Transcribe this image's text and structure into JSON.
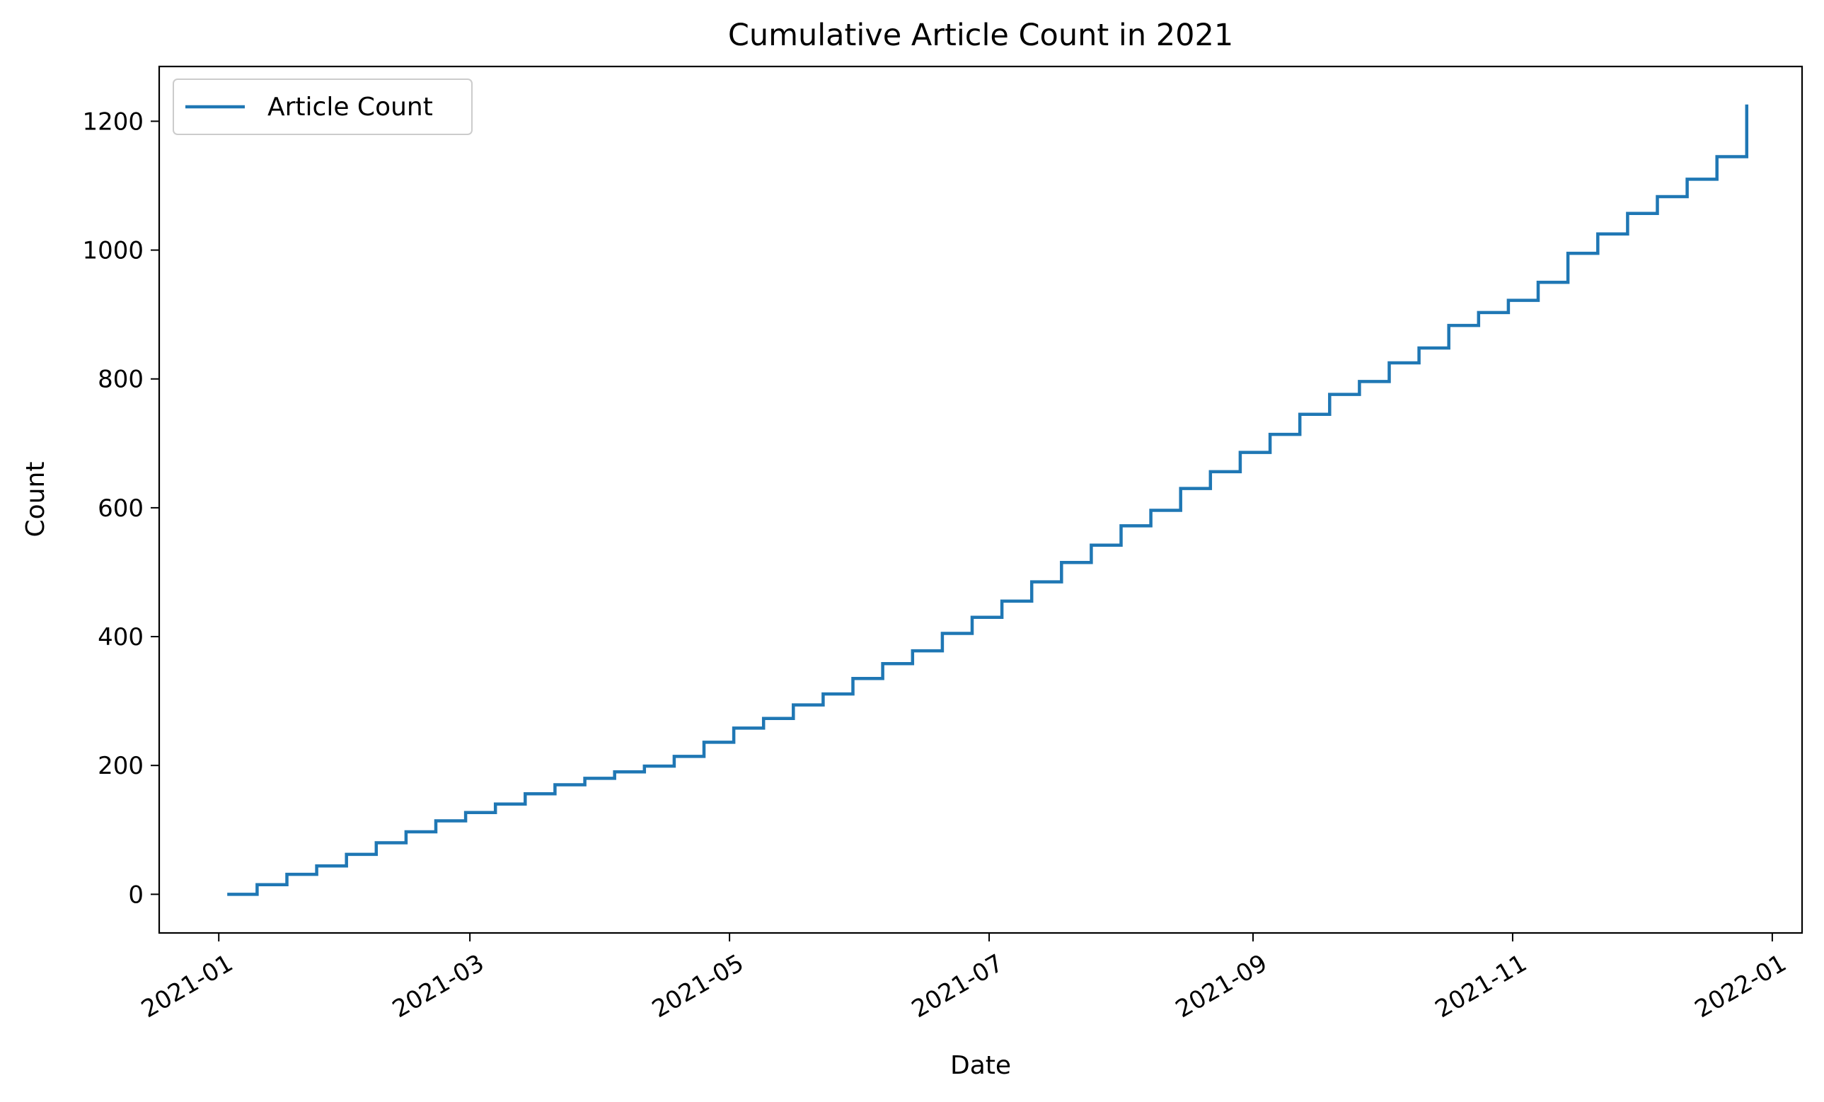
{
  "chart_data": {
    "type": "line",
    "title": "Cumulative Article Count in 2021",
    "xlabel": "Date",
    "ylabel": "Count",
    "xlim": [
      "2020-12-18",
      "2022-01-08"
    ],
    "ylim": [
      -60,
      1285
    ],
    "x_ticks": [
      "2021-01",
      "2021-03",
      "2021-05",
      "2021-07",
      "2021-09",
      "2021-11",
      "2022-01"
    ],
    "y_ticks": [
      0,
      200,
      400,
      600,
      800,
      1000,
      1200
    ],
    "grid": false,
    "legend_position": "top-left",
    "step": "post",
    "series": [
      {
        "name": "Article Count",
        "color": "#1f77b4",
        "x": [
          "2021-01-03",
          "2021-01-10",
          "2021-01-17",
          "2021-01-24",
          "2021-01-31",
          "2021-02-07",
          "2021-02-14",
          "2021-02-21",
          "2021-02-28",
          "2021-03-07",
          "2021-03-14",
          "2021-03-21",
          "2021-03-28",
          "2021-04-04",
          "2021-04-11",
          "2021-04-18",
          "2021-04-25",
          "2021-05-02",
          "2021-05-09",
          "2021-05-16",
          "2021-05-23",
          "2021-05-30",
          "2021-06-06",
          "2021-06-13",
          "2021-06-20",
          "2021-06-27",
          "2021-07-04",
          "2021-07-11",
          "2021-07-18",
          "2021-07-25",
          "2021-08-01",
          "2021-08-08",
          "2021-08-15",
          "2021-08-22",
          "2021-08-29",
          "2021-09-05",
          "2021-09-12",
          "2021-09-19",
          "2021-09-26",
          "2021-10-03",
          "2021-10-10",
          "2021-10-17",
          "2021-10-24",
          "2021-10-31",
          "2021-11-07",
          "2021-11-14",
          "2021-11-21",
          "2021-11-28",
          "2021-12-05",
          "2021-12-12",
          "2021-12-19",
          "2021-12-26"
        ],
        "values": [
          0,
          15,
          31,
          44,
          62,
          80,
          97,
          114,
          127,
          140,
          156,
          170,
          180,
          190,
          199,
          214,
          236,
          258,
          273,
          294,
          311,
          335,
          358,
          378,
          405,
          430,
          455,
          485,
          515,
          542,
          572,
          596,
          630,
          656,
          686,
          714,
          745,
          776,
          796,
          825,
          848,
          883,
          903,
          922,
          950,
          995,
          1025,
          1057,
          1083,
          1110,
          1145,
          1200
        ],
        "final_value": 1226
      }
    ]
  }
}
